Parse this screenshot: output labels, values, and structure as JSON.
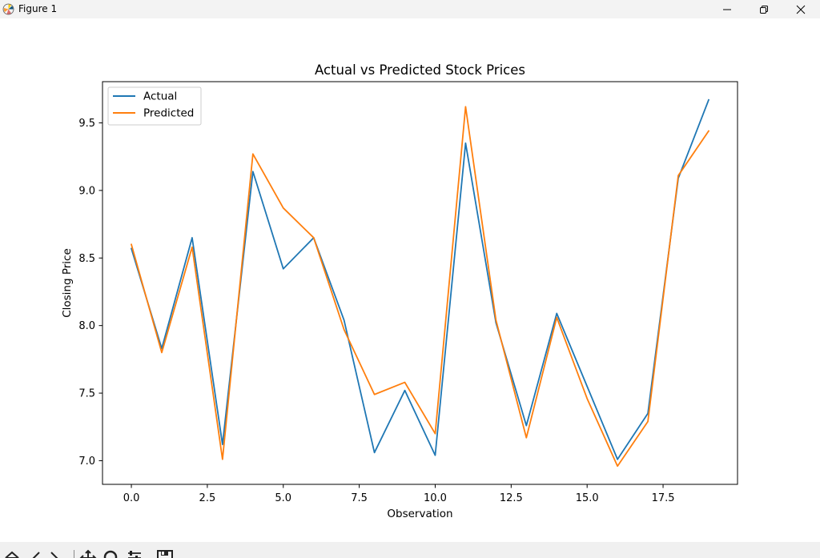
{
  "window": {
    "title": "Figure 1",
    "icon": "matplotlib-logo-icon",
    "controls": [
      "minimize-icon",
      "restore-icon",
      "close-icon"
    ]
  },
  "toolbar": {
    "icons": [
      "home-icon",
      "back-arrow-icon",
      "forward-arrow-icon",
      "pan-move-icon",
      "zoom-magnifier-icon",
      "subplots-configure-icon",
      "save-disk-icon"
    ]
  },
  "colors": {
    "actual": "#1f77b4",
    "predicted": "#ff7f0e"
  },
  "chart_data": {
    "type": "line",
    "title": "Actual vs Predicted Stock Prices",
    "xlabel": "Observation",
    "ylabel": "Closing Price",
    "x": [
      0,
      1,
      2,
      3,
      4,
      5,
      6,
      7,
      8,
      9,
      10,
      11,
      12,
      13,
      14,
      15,
      16,
      17,
      18,
      19
    ],
    "series": [
      {
        "name": "Actual",
        "color": "#1f77b4",
        "values": [
          8.57,
          7.83,
          8.65,
          7.12,
          9.14,
          8.42,
          8.65,
          8.04,
          7.06,
          7.52,
          7.04,
          9.35,
          8.02,
          7.26,
          8.09,
          7.55,
          7.01,
          7.35,
          9.09,
          9.67
        ]
      },
      {
        "name": "Predicted",
        "color": "#ff7f0e",
        "values": [
          8.6,
          7.8,
          8.58,
          7.01,
          9.27,
          8.87,
          8.65,
          7.97,
          7.49,
          7.58,
          7.2,
          9.62,
          8.04,
          7.17,
          8.06,
          7.46,
          6.96,
          7.29,
          9.11,
          9.44
        ]
      }
    ],
    "xticks": [
      "0.0",
      "2.5",
      "5.0",
      "7.5",
      "10.0",
      "12.5",
      "15.0",
      "17.5"
    ],
    "yticks": [
      "7.0",
      "7.5",
      "8.0",
      "8.5",
      "9.0",
      "9.5"
    ],
    "xlim": [
      -0.95,
      19.95
    ],
    "ylim": [
      6.825,
      9.805
    ],
    "grid": false,
    "legend": "upper left"
  }
}
